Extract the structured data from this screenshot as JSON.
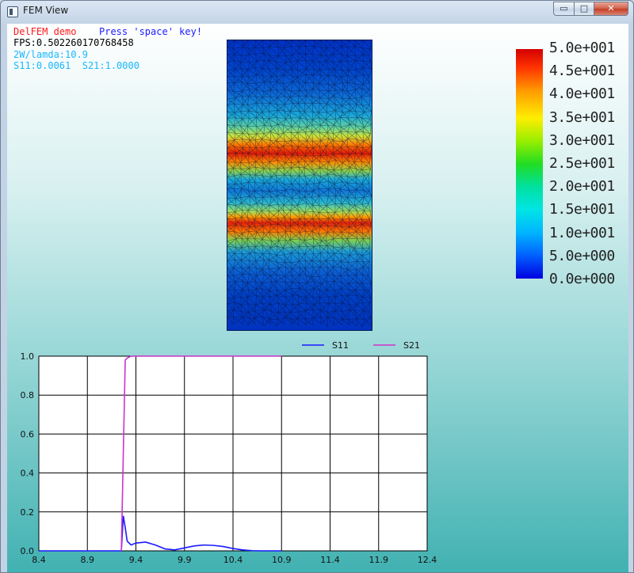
{
  "window": {
    "title": "FEM View",
    "min_symbol": "▭",
    "max_symbol": "□",
    "close_symbol": "✕"
  },
  "hud": {
    "demo_label": "DelFEM demo",
    "hint": "Press 'space' key!",
    "fps": "FPS:0.502260170768458",
    "wavelength": "2W/lamda:10.9",
    "s_params": "S11:0.0061  S21:1.0000"
  },
  "colorbar": {
    "labels": [
      "5.0e+001",
      "4.5e+001",
      "4.0e+001",
      "3.5e+001",
      "3.0e+001",
      "2.5e+001",
      "2.0e+001",
      "1.5e+001",
      "1.0e+001",
      "5.0e+000",
      "0.0e+000"
    ]
  },
  "chart_data": {
    "type": "line",
    "x_ticks": [
      "8.4",
      "8.9",
      "9.4",
      "9.9",
      "10.4",
      "10.9",
      "11.4",
      "11.9",
      "12.4"
    ],
    "y_ticks": [
      "0.0",
      "0.2",
      "0.4",
      "0.6",
      "0.8",
      "1.0"
    ],
    "xlim": [
      8.4,
      12.4
    ],
    "ylim": [
      0.0,
      1.0
    ],
    "grid": true,
    "legend_placement": "top",
    "series": [
      {
        "name": "S11",
        "color": "#1a1aff",
        "x": [
          8.4,
          9.2,
          9.25,
          9.27,
          9.29,
          9.31,
          9.35,
          9.4,
          9.5,
          9.6,
          9.7,
          9.8,
          9.9,
          10.0,
          10.1,
          10.2,
          10.3,
          10.4,
          10.5,
          10.6,
          10.7,
          10.8,
          10.9
        ],
        "y": [
          0.0,
          0.0,
          0.0,
          0.18,
          0.12,
          0.05,
          0.03,
          0.04,
          0.045,
          0.03,
          0.01,
          0.005,
          0.015,
          0.025,
          0.03,
          0.028,
          0.022,
          0.012,
          0.005,
          0.001,
          0.0,
          0.0,
          0.0
        ]
      },
      {
        "name": "S21",
        "color": "#cc33cc",
        "x": [
          9.25,
          9.27,
          9.29,
          9.31,
          9.35,
          9.4,
          10.0,
          10.5,
          10.9
        ],
        "y": [
          0.0,
          0.5,
          0.98,
          0.99,
          1.0,
          1.0,
          1.0,
          1.0,
          1.0
        ]
      }
    ]
  }
}
